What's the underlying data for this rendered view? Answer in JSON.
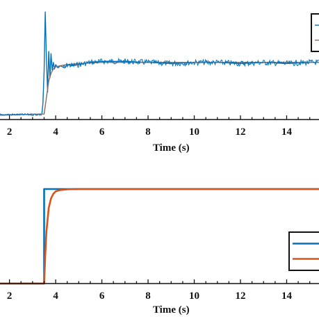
{
  "chart_data": [
    {
      "type": "line",
      "title": "",
      "xlabel": "Time (s)",
      "ylabel": "",
      "xlim": [
        1.5,
        15.4
      ],
      "ylim": [
        0,
        1
      ],
      "xticks": [
        2,
        4,
        6,
        8,
        10,
        12,
        14
      ],
      "grid": false,
      "legend": "top-right",
      "series": [
        {
          "color": "#0072BD",
          "x": [
            1.5,
            3.4,
            3.45,
            3.5,
            3.55,
            3.6,
            3.65,
            3.7,
            3.75,
            3.8,
            3.85,
            3.9,
            3.95,
            4.0,
            4.1,
            4.2,
            4.3,
            4.4,
            4.5,
            4.7,
            5.0,
            5.5,
            6.0,
            7.0,
            8.0,
            9.0,
            10.0,
            11.0,
            12.0,
            13.0,
            14.0,
            15.0,
            15.4
          ],
          "y": [
            0.04,
            0.05,
            0.15,
            0.45,
            0.98,
            0.55,
            0.25,
            0.62,
            0.38,
            0.6,
            0.45,
            0.52,
            0.46,
            0.5,
            0.47,
            0.49,
            0.48,
            0.47,
            0.5,
            0.49,
            0.5,
            0.52,
            0.53,
            0.53,
            0.52,
            0.51,
            0.52,
            0.52,
            0.51,
            0.52,
            0.51,
            0.52,
            0.52
          ]
        },
        {
          "color": "#8C6A5A",
          "x": [
            1.5,
            3.5,
            3.6,
            3.7,
            3.8,
            3.9,
            4.0,
            4.2,
            4.5,
            5.0,
            6.0,
            8.0,
            10.0,
            12.0,
            14.0,
            15.4
          ],
          "y": [
            0.04,
            0.05,
            0.2,
            0.35,
            0.42,
            0.46,
            0.48,
            0.49,
            0.5,
            0.51,
            0.52,
            0.52,
            0.52,
            0.52,
            0.52,
            0.52
          ]
        }
      ]
    },
    {
      "type": "line",
      "title": "",
      "xlabel": "Time (s)",
      "ylabel": "",
      "xlim": [
        1.5,
        15.4
      ],
      "ylim": [
        0,
        1
      ],
      "xticks": [
        2,
        4,
        6,
        8,
        10,
        12,
        14
      ],
      "grid": false,
      "legend": "bottom-right",
      "series": [
        {
          "color": "#0072BD",
          "x": [
            1.5,
            3.5,
            3.5,
            15.4
          ],
          "y": [
            0.0,
            0.0,
            1.0,
            1.0
          ]
        },
        {
          "color": "#D95319",
          "x": [
            1.5,
            3.5,
            3.55,
            3.6,
            3.7,
            3.8,
            3.9,
            4.0,
            4.2,
            4.5,
            5.0,
            6.0,
            15.4
          ],
          "y": [
            0.0,
            0.0,
            0.3,
            0.55,
            0.8,
            0.9,
            0.95,
            0.975,
            0.99,
            0.997,
            1.0,
            1.0,
            1.0
          ]
        }
      ]
    }
  ]
}
